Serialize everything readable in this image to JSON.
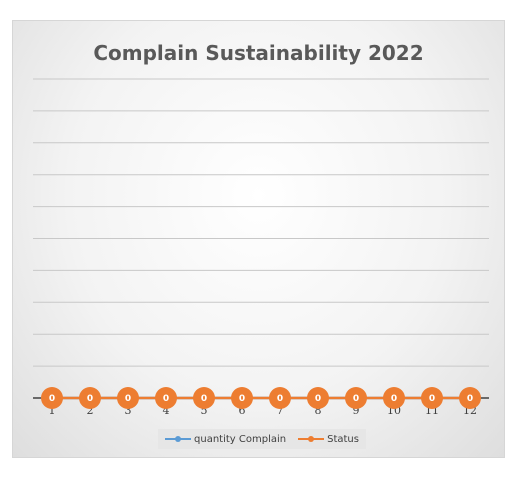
{
  "chart_data": {
    "type": "line",
    "title": "Complain Sustainability 2022",
    "categories": [
      "1",
      "2",
      "3",
      "4",
      "5",
      "6",
      "7",
      "8",
      "9",
      "10",
      "11",
      "12"
    ],
    "series": [
      {
        "name": "quantity Complain",
        "values": [
          0,
          0,
          0,
          0,
          0,
          0,
          0,
          0,
          0,
          0,
          0,
          0
        ],
        "color": "#5b9bd5"
      },
      {
        "name": "Status",
        "values": [
          0,
          0,
          0,
          0,
          0,
          0,
          0,
          0,
          0,
          0,
          0,
          0
        ],
        "color": "#ed7d31"
      }
    ],
    "data_labels": [
      "0",
      "0",
      "0",
      "0",
      "0",
      "0",
      "0",
      "0",
      "0",
      "0",
      "0",
      "0"
    ],
    "xlabel": "",
    "ylabel": "",
    "ylim": [
      0,
      10
    ],
    "grid": true,
    "legend": "bottom"
  }
}
